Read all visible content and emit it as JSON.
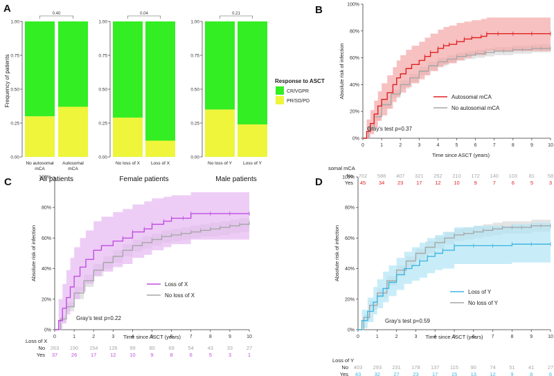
{
  "panelA": {
    "letter": "A",
    "ylabel": "Frequency of patients",
    "yticks": [
      "1.00",
      "0.75",
      "0.50",
      "0.25",
      "0.00"
    ],
    "legend": {
      "title": "Response to ASCT",
      "items": [
        {
          "label": "CR/VGPR",
          "color": "#33ee22"
        },
        {
          "label": "PR/SD/PD",
          "color": "#eef53a"
        }
      ]
    }
  },
  "panelB": {
    "letter": "B",
    "gray_test": "Gray's test p=0.37",
    "risk_header": "somal mCA"
  },
  "panelC": {
    "letter": "C",
    "gray_test": "Gray's test p=0.22",
    "risk_header": "Loss of X"
  },
  "panelD": {
    "letter": "D",
    "gray_test": "Gray's test p=0.59",
    "risk_header": "Loss of Y"
  },
  "chart_data": [
    {
      "id": "A1",
      "type": "bar",
      "title": "All patients",
      "stacked": true,
      "categories": [
        "No autosomal\nmCA",
        "Autosomal\nmCA"
      ],
      "series": [
        {
          "name": "PR/SD/PD",
          "values": [
            0.3,
            0.37
          ]
        },
        {
          "name": "CR/VGPR",
          "values": [
            0.7,
            0.63
          ]
        }
      ],
      "pvalue": "0.40",
      "ylim": [
        0,
        1
      ]
    },
    {
      "id": "A2",
      "type": "bar",
      "title": "Female patients",
      "stacked": true,
      "categories": [
        "No loss of X",
        "Loss of X"
      ],
      "series": [
        {
          "name": "PR/SD/PD",
          "values": [
            0.29,
            0.12
          ]
        },
        {
          "name": "CR/VGPR",
          "values": [
            0.71,
            0.88
          ]
        }
      ],
      "pvalue": "0.04",
      "ylim": [
        0,
        1
      ]
    },
    {
      "id": "A3",
      "type": "bar",
      "title": "Male patients",
      "stacked": true,
      "categories": [
        "No loss of Y",
        "Loss of Y"
      ],
      "series": [
        {
          "name": "PR/SD/PD",
          "values": [
            0.35,
            0.24
          ]
        },
        {
          "name": "CR/VGPR",
          "values": [
            0.65,
            0.76
          ]
        }
      ],
      "pvalue": "0.21",
      "ylim": [
        0,
        1
      ]
    },
    {
      "id": "B",
      "type": "line",
      "xlabel": "Time since ASCT (years)",
      "ylabel": "Absolute risk of infection",
      "xlim": [
        0,
        10
      ],
      "ylim": [
        0,
        100
      ],
      "xticks": [
        "0",
        "1",
        "2",
        "3",
        "4",
        "5",
        "6",
        "7",
        "8",
        "9",
        "10"
      ],
      "yticks": [
        "0%",
        "20%",
        "40%",
        "60%",
        "80%",
        "100%"
      ],
      "series": [
        {
          "name": "Autosomal mCA",
          "color": "#e02020",
          "band": "#f4a7a7",
          "x": [
            0,
            0.2,
            0.4,
            0.6,
            0.8,
            1.0,
            1.3,
            1.6,
            1.8,
            2.0,
            2.3,
            2.6,
            3.0,
            3.3,
            3.6,
            4.0,
            4.3,
            4.6,
            5.0,
            5.4,
            5.8,
            6.3,
            6.6,
            7.2,
            8.0,
            9.0,
            10.0
          ],
          "y": [
            0,
            5,
            11,
            18,
            24,
            29,
            34,
            40,
            45,
            48,
            52,
            55,
            58,
            61,
            64,
            67,
            69,
            70,
            72,
            74,
            75,
            76,
            78,
            78,
            78,
            78,
            78
          ],
          "lo": [
            0,
            0,
            3,
            8,
            13,
            17,
            22,
            27,
            31,
            34,
            38,
            41,
            44,
            47,
            50,
            53,
            55,
            56,
            58,
            60,
            62,
            62,
            65,
            65,
            65,
            65,
            65
          ],
          "hi": [
            0,
            14,
            21,
            28,
            35,
            41,
            47,
            53,
            58,
            62,
            66,
            69,
            72,
            75,
            78,
            81,
            83,
            84,
            86,
            87,
            88,
            89,
            90,
            90,
            90,
            90,
            90
          ]
        },
        {
          "name": "No autosomal mCA",
          "color": "#a6a6a6",
          "band": "#d9d9d9",
          "x": [
            0,
            0.3,
            0.6,
            1.0,
            1.5,
            2.0,
            2.5,
            3.0,
            3.5,
            4.0,
            4.5,
            5.0,
            5.5,
            6.0,
            6.5,
            7.0,
            7.5,
            8.0,
            8.5,
            9.0,
            9.5,
            10.0
          ],
          "y": [
            0,
            8,
            16,
            25,
            33,
            40,
            45,
            50,
            54,
            57,
            59,
            61,
            62,
            63,
            64,
            65,
            65,
            66,
            66,
            67,
            67,
            67
          ],
          "lo": [
            0,
            6,
            13,
            22,
            30,
            37,
            42,
            47,
            51,
            54,
            56,
            58,
            59,
            60,
            61,
            62,
            62,
            63,
            63,
            64,
            64,
            64
          ],
          "hi": [
            0,
            10,
            19,
            28,
            36,
            43,
            48,
            53,
            57,
            60,
            62,
            64,
            65,
            66,
            67,
            68,
            68,
            69,
            69,
            70,
            70,
            70
          ]
        }
      ],
      "risk_table": {
        "rows": [
          {
            "label": "No",
            "color": "#a6a6a6",
            "values": [
              "702",
              "588",
              "407",
              "321",
              "252",
              "210",
              "172",
              "140",
              "103",
              "81",
              "58"
            ]
          },
          {
            "label": "Yes",
            "color": "#e02020",
            "values": [
              "45",
              "34",
              "23",
              "17",
              "12",
              "10",
              "9",
              "7",
              "6",
              "5",
              "3"
            ]
          }
        ]
      }
    },
    {
      "id": "C",
      "type": "line",
      "xlabel": "Time since ASCT (years)",
      "ylabel": "Absolute risk of infection",
      "xlim": [
        0,
        10
      ],
      "ylim": [
        0,
        100
      ],
      "xticks": [
        "0",
        "1",
        "2",
        "3",
        "4",
        "5",
        "6",
        "7",
        "8",
        "9",
        "10"
      ],
      "yticks": [
        "0%",
        "20%",
        "40%",
        "60%",
        "80%",
        "100%"
      ],
      "series": [
        {
          "name": "Loss of X",
          "color": "#c04de0",
          "band": "#e5b8f2",
          "x": [
            0,
            0.2,
            0.4,
            0.6,
            0.8,
            1.0,
            1.3,
            1.6,
            2.0,
            2.4,
            3.0,
            3.5,
            4.0,
            4.6,
            5.0,
            5.6,
            6.0,
            6.6,
            7.0,
            8.0,
            9.0,
            10.0
          ],
          "y": [
            0,
            6,
            14,
            21,
            28,
            35,
            41,
            46,
            52,
            55,
            58,
            60,
            64,
            66,
            69,
            71,
            73,
            73,
            76,
            76,
            76,
            76
          ],
          "lo": [
            0,
            0,
            4,
            10,
            15,
            20,
            25,
            30,
            35,
            38,
            41,
            43,
            47,
            49,
            52,
            54,
            56,
            56,
            59,
            59,
            59,
            59
          ],
          "hi": [
            0,
            20,
            30,
            39,
            47,
            54,
            60,
            65,
            71,
            74,
            77,
            79,
            82,
            84,
            86,
            87,
            88,
            88,
            90,
            90,
            90,
            90
          ]
        },
        {
          "name": "No loss of X",
          "color": "#a6a6a6",
          "band": "#d9d9d9",
          "x": [
            0,
            0.3,
            0.6,
            1.0,
            1.5,
            2.0,
            2.5,
            3.0,
            3.5,
            4.0,
            4.5,
            5.0,
            5.5,
            6.0,
            6.5,
            7.0,
            7.5,
            8.0,
            8.5,
            9.0,
            9.5,
            10.0
          ],
          "y": [
            0,
            7,
            15,
            24,
            32,
            39,
            44,
            48,
            52,
            55,
            57,
            59,
            61,
            62,
            63,
            64,
            65,
            66,
            67,
            68,
            69,
            70
          ],
          "lo": [
            0,
            5,
            12,
            20,
            28,
            35,
            40,
            44,
            48,
            51,
            53,
            55,
            57,
            58,
            59,
            60,
            61,
            61,
            62,
            63,
            64,
            65
          ],
          "hi": [
            0,
            9,
            18,
            28,
            36,
            43,
            48,
            52,
            56,
            59,
            61,
            63,
            65,
            66,
            67,
            68,
            69,
            70,
            71,
            72,
            73,
            74
          ]
        }
      ],
      "risk_table": {
        "rows": [
          {
            "label": "No",
            "color": "#a6a6a6",
            "values": [
              "263",
              "190",
              "154",
              "126",
              "99",
              "80",
              "69",
              "54",
              "43",
              "33",
              "27"
            ]
          },
          {
            "label": "Yes",
            "color": "#c04de0",
            "values": [
              "37",
              "26",
              "17",
              "12",
              "10",
              "9",
              "8",
              "6",
              "5",
              "3",
              "1"
            ]
          }
        ]
      }
    },
    {
      "id": "D",
      "type": "line",
      "xlabel": "Time since ASCT (years)",
      "ylabel": "Absolute risk of infection",
      "xlim": [
        0,
        10
      ],
      "ylim": [
        0,
        100
      ],
      "xticks": [
        "0",
        "1",
        "2",
        "3",
        "4",
        "5",
        "6",
        "7",
        "8",
        "9",
        "10"
      ],
      "yticks": [
        "0%",
        "20%",
        "40%",
        "60%",
        "80%",
        "100%"
      ],
      "series": [
        {
          "name": "Loss of Y",
          "color": "#3fb6e0",
          "band": "#b2e6f5",
          "x": [
            0,
            0.2,
            0.5,
            0.8,
            1.0,
            1.3,
            1.6,
            2.0,
            2.4,
            2.8,
            3.2,
            3.6,
            4.0,
            4.4,
            5.0,
            6.0,
            7.0,
            8.0,
            9.0,
            10.0
          ],
          "y": [
            0,
            6,
            12,
            18,
            22,
            27,
            31,
            36,
            40,
            42,
            45,
            48,
            50,
            52,
            55,
            55,
            55,
            56,
            56,
            56
          ],
          "lo": [
            0,
            1,
            5,
            10,
            14,
            18,
            22,
            26,
            30,
            32,
            34,
            37,
            39,
            40,
            43,
            43,
            43,
            44,
            44,
            44
          ],
          "hi": [
            0,
            13,
            21,
            28,
            33,
            38,
            42,
            47,
            51,
            54,
            57,
            60,
            62,
            64,
            67,
            68,
            68,
            69,
            70,
            70
          ]
        },
        {
          "name": "No loss of Y",
          "color": "#a6a6a6",
          "band": "#d9d9d9",
          "x": [
            0,
            0.3,
            0.6,
            1.0,
            1.5,
            2.0,
            2.5,
            3.0,
            3.5,
            4.0,
            4.5,
            5.0,
            5.5,
            6.0,
            6.5,
            7.0,
            7.5,
            8.0,
            8.5,
            9.0,
            9.5,
            10.0
          ],
          "y": [
            0,
            8,
            16,
            24,
            32,
            39,
            45,
            50,
            54,
            57,
            60,
            62,
            63,
            64,
            65,
            66,
            67,
            67,
            67,
            68,
            68,
            68
          ],
          "lo": [
            0,
            6,
            13,
            21,
            29,
            35,
            41,
            46,
            50,
            53,
            56,
            58,
            59,
            60,
            61,
            62,
            63,
            63,
            63,
            64,
            64,
            64
          ],
          "hi": [
            0,
            10,
            19,
            27,
            35,
            42,
            48,
            53,
            58,
            61,
            64,
            66,
            67,
            68,
            69,
            70,
            71,
            71,
            71,
            72,
            72,
            72
          ]
        }
      ],
      "risk_table": {
        "rows": [
          {
            "label": "No",
            "color": "#a6a6a6",
            "values": [
              "403",
              "293",
              "231",
              "178",
              "137",
              "115",
              "90",
              "74",
              "51",
              "41",
              "27"
            ]
          },
          {
            "label": "Yes",
            "color": "#3fb6e0",
            "values": [
              "43",
              "32",
              "27",
              "23",
              "17",
              "15",
              "13",
              "12",
              "9",
              "8",
              "6"
            ]
          }
        ]
      }
    }
  ]
}
